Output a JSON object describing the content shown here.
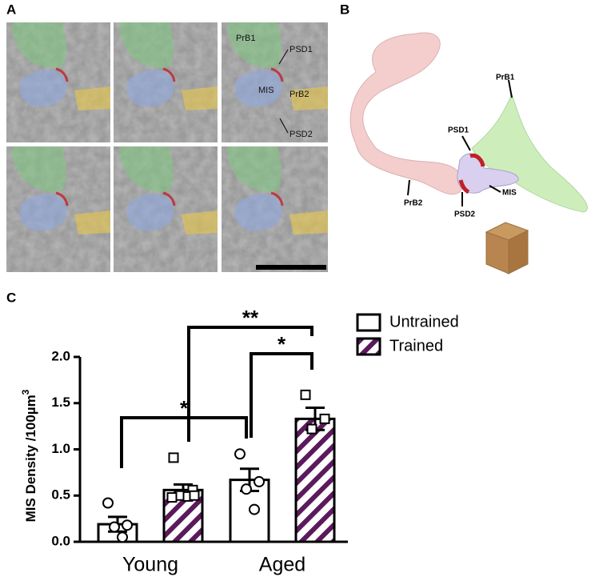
{
  "panel_labels": [
    "A",
    "B",
    "C"
  ],
  "em_labels": [
    "PrB1",
    "PSD1",
    "MIS",
    "PrB2",
    "PSD2"
  ],
  "render_labels": [
    "PrB1",
    "PSD1",
    "PrB2",
    "PSD2",
    "MIS"
  ],
  "chart_data": {
    "type": "bar",
    "ylabel": "MIS Density /100µm",
    "ylabel_sup": "3",
    "categories": [
      "Young",
      "Aged"
    ],
    "series": [
      {
        "name": "Untrained",
        "color": "#ffffff",
        "hatch": false,
        "values": [
          0.19,
          0.67
        ],
        "errors": [
          0.08,
          0.12
        ],
        "points": [
          [
            0.42,
            0.18,
            0.16,
            0.05
          ],
          [
            0.95,
            0.65,
            0.57,
            0.35
          ]
        ]
      },
      {
        "name": "Trained",
        "color": "#5b1a5b",
        "hatch": true,
        "values": [
          0.56,
          1.33
        ],
        "errors": [
          0.06,
          0.12
        ],
        "points": [
          [
            0.91,
            0.56,
            0.5,
            0.49,
            0.5,
            0.48
          ],
          [
            1.59,
            1.33,
            1.22
          ]
        ]
      }
    ],
    "ylim": [
      0,
      2
    ],
    "yticks": [
      {
        "value": 0,
        "label": "0.0"
      },
      0.5,
      {
        "value": 1,
        "label": "1.0"
      },
      1.5,
      {
        "value": 2,
        "label": "2.0"
      }
    ],
    "annotations": [
      "*",
      "**",
      "*"
    ],
    "legend": "upper right"
  }
}
